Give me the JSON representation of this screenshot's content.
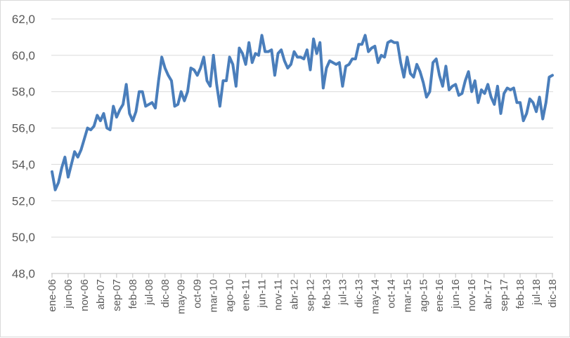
{
  "chart_data": {
    "type": "line",
    "title": "",
    "xlabel": "",
    "ylabel": "",
    "ylim": [
      48,
      62
    ],
    "y_ticks": [
      "48,0",
      "50,0",
      "52,0",
      "54,0",
      "56,0",
      "58,0",
      "60,0",
      "62,0"
    ],
    "x_tick_labels": [
      "ene-06",
      "jun-06",
      "nov-06",
      "abr-07",
      "sep-07",
      "feb-08",
      "jul-08",
      "dic-08",
      "may-09",
      "oct-09",
      "mar-10",
      "ago-10",
      "ene-11",
      "jun-11",
      "nov-11",
      "abr-12",
      "sep-12",
      "feb-13",
      "jul-13",
      "dic-13",
      "may-14",
      "oct-14",
      "mar-15",
      "ago-15",
      "ene-16",
      "jun-16",
      "nov-16",
      "abr-17",
      "sep-17",
      "feb-18",
      "jul-18",
      "dic-18"
    ],
    "grid": "horizontal",
    "legend": "none",
    "line_color": "#4a7ebb",
    "series": [
      {
        "values": [
          53.6,
          52.6,
          53.0,
          53.8,
          54.4,
          53.3,
          54.0,
          54.7,
          54.4,
          54.8,
          55.4,
          56.0,
          55.9,
          56.1,
          56.7,
          56.4,
          56.8,
          56.0,
          55.9,
          57.2,
          56.6,
          57.0,
          57.3,
          58.4,
          56.8,
          56.4,
          56.9,
          58.0,
          58.0,
          57.2,
          57.3,
          57.4,
          57.1,
          58.6,
          59.9,
          59.3,
          58.9,
          58.6,
          57.2,
          57.3,
          58.0,
          57.5,
          58.0,
          59.3,
          59.2,
          58.9,
          59.3,
          59.9,
          58.6,
          58.3,
          60.0,
          58.4,
          57.2,
          58.6,
          58.6,
          59.9,
          59.5,
          58.3,
          60.4,
          60.1,
          59.5,
          60.7,
          59.6,
          60.1,
          60.0,
          61.1,
          60.2,
          60.2,
          60.3,
          58.9,
          60.1,
          60.3,
          59.7,
          59.3,
          59.5,
          60.2,
          59.9,
          59.9,
          59.8,
          60.3,
          59.2,
          60.9,
          60.1,
          60.7,
          58.2,
          59.3,
          59.7,
          59.6,
          59.5,
          59.6,
          58.3,
          59.4,
          59.5,
          59.8,
          59.8,
          60.6,
          60.6,
          61.1,
          60.2,
          60.4,
          60.5,
          59.6,
          60.0,
          59.9,
          60.7,
          60.8,
          60.7,
          60.7,
          59.6,
          58.8,
          59.9,
          59.0,
          58.8,
          59.5,
          59.1,
          58.5,
          57.7,
          58.0,
          59.6,
          59.8,
          58.9,
          58.3,
          59.4,
          58.1,
          58.3,
          58.4,
          57.8,
          57.9,
          58.6,
          59.1,
          58.0,
          58.6,
          57.4,
          58.1,
          57.9,
          58.4,
          57.7,
          57.3,
          58.3,
          56.8,
          57.9,
          58.2,
          58.1,
          58.2,
          57.4,
          57.4,
          56.4,
          56.8,
          57.6,
          57.4,
          56.9,
          57.7,
          56.5,
          57.4,
          58.8,
          58.9
        ]
      }
    ]
  }
}
